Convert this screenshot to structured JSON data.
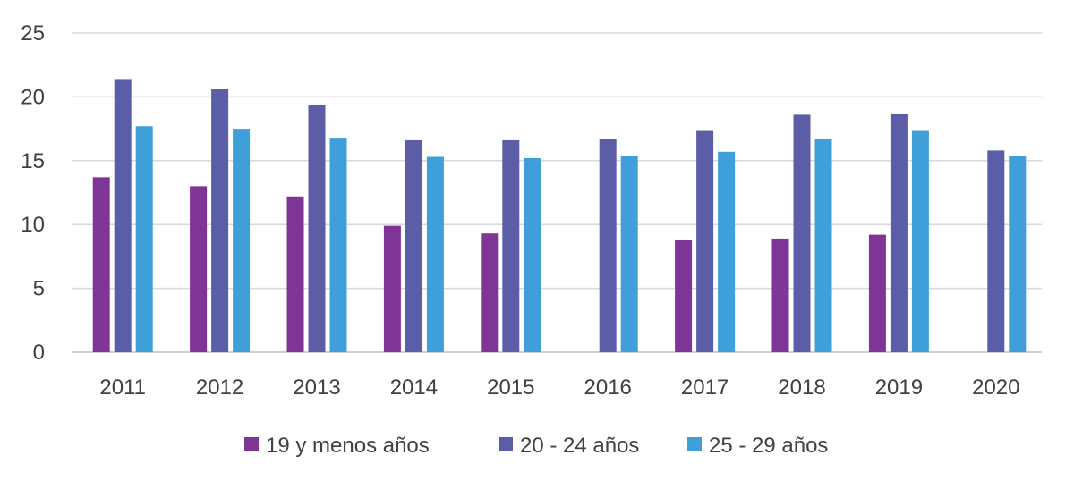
{
  "chart_data": {
    "type": "bar",
    "title": "",
    "xlabel": "",
    "ylabel": "",
    "ylim": [
      0,
      25
    ],
    "yticks": [
      "0",
      "5",
      "10",
      "15",
      "20",
      "25"
    ],
    "ytick_values": [
      0,
      5,
      10,
      15,
      20,
      25
    ],
    "grid": true,
    "legend_position": "bottom",
    "categories": [
      "2011",
      "2012",
      "2013",
      "2014",
      "2015",
      "2016",
      "2017",
      "2018",
      "2019",
      "2020"
    ],
    "series": [
      {
        "name": "19 y menos años",
        "color": "#7f3596",
        "values": [
          13.7,
          13.0,
          12.2,
          9.9,
          9.3,
          null,
          8.8,
          8.9,
          9.2,
          null
        ]
      },
      {
        "name": "20 - 24 años",
        "color": "#5b5ea6",
        "values": [
          21.4,
          20.6,
          19.4,
          16.6,
          16.6,
          16.7,
          17.4,
          18.6,
          18.7,
          15.8
        ]
      },
      {
        "name": "25 - 29 años",
        "color": "#3f9fd9",
        "values": [
          17.7,
          17.5,
          16.8,
          15.3,
          15.2,
          15.4,
          15.7,
          16.7,
          17.4,
          15.4
        ]
      }
    ]
  }
}
